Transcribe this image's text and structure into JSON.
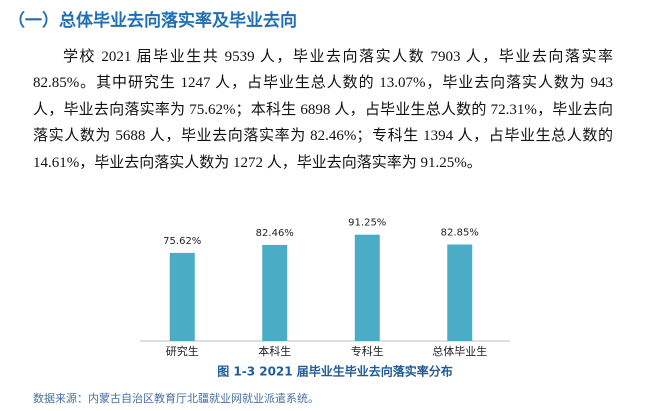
{
  "header": {
    "title": "（一）总体毕业去向落实率及毕业去向"
  },
  "paragraph": "学校 2021 届毕业生共 9539 人，毕业去向落实人数 7903 人，毕业去向落实率 82.85%。其中研究生 1247 人，占毕业生总人数的 13.07%，毕业去向落实人数为 943 人，毕业去向落实率为 75.62%；本科生 6898 人，占毕业生总人数的 72.31%，毕业去向落实人数为 5688 人，毕业去向落实率为 82.46%；专科生 1394 人，占毕业生总人数的 14.61%，毕业去向落实人数为 1272 人，毕业去向落实率为 91.25%。",
  "chart_data": {
    "type": "bar",
    "title": "图 1-3  2021 届毕业生毕业去向落实率分布",
    "categories": [
      "研究生",
      "本科生",
      "专科生",
      "总体毕业生"
    ],
    "values": [
      75.62,
      82.46,
      91.25,
      82.85
    ],
    "value_labels": [
      "75.62%",
      "82.46%",
      "91.25%",
      "82.85%"
    ],
    "color": "#4bacc6"
  },
  "source": "数据来源：内蒙古自治区教育厅北疆就业网就业派遣系统。"
}
